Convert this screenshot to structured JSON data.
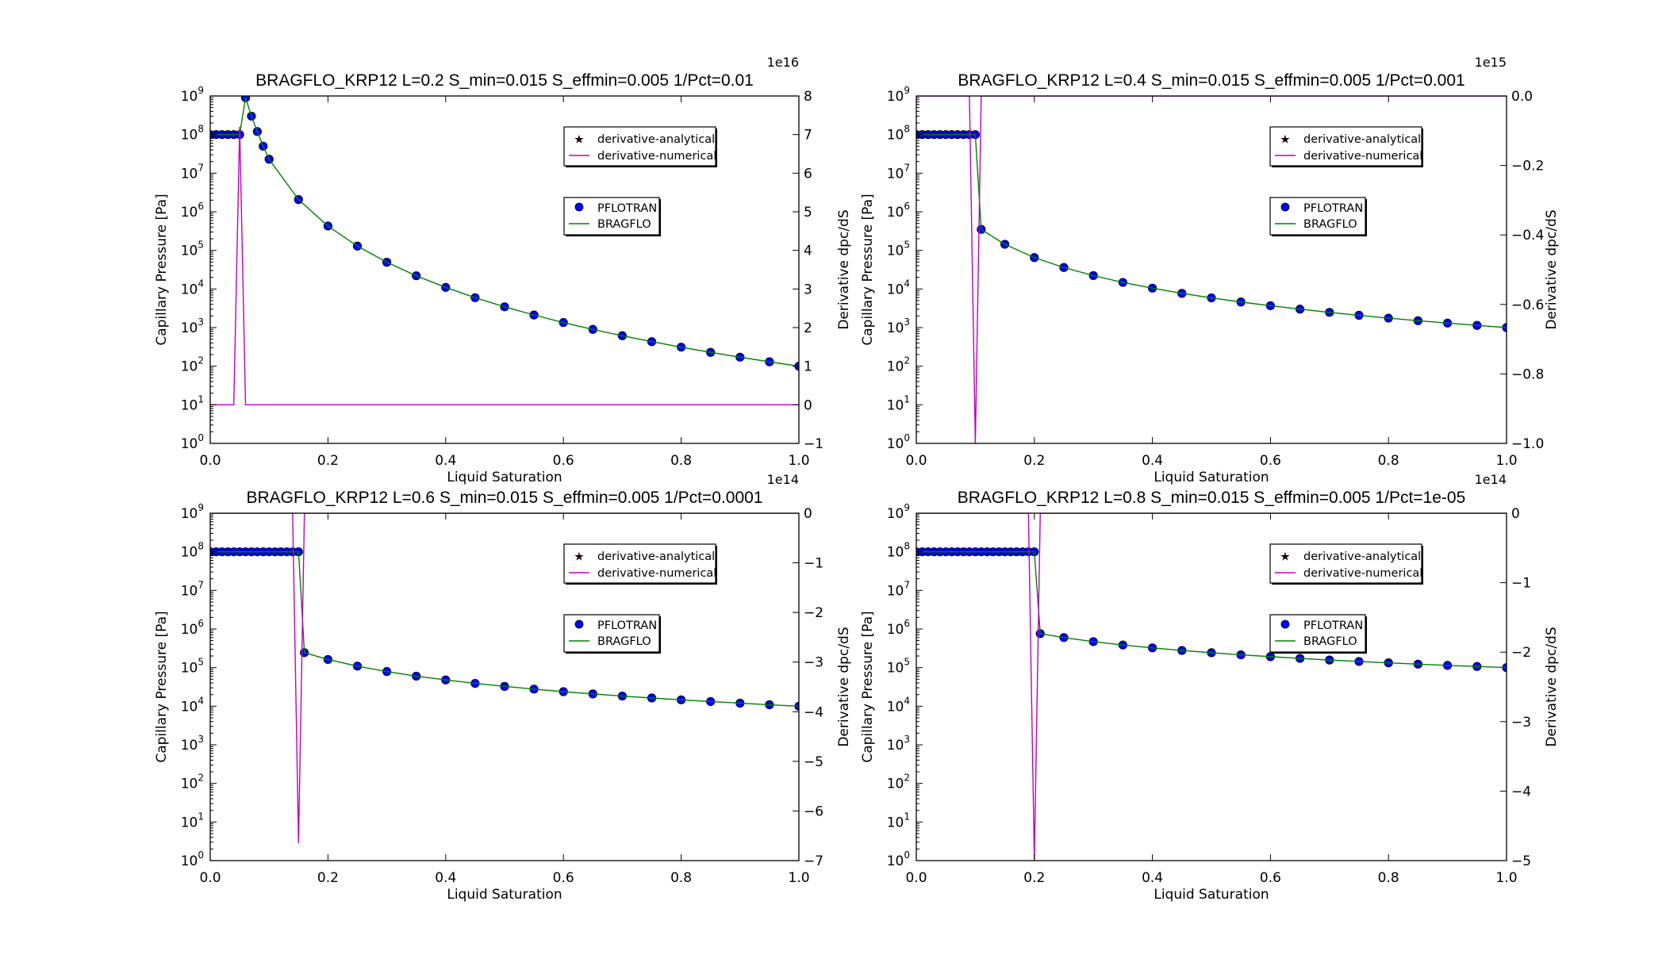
{
  "chart_data": [
    {
      "type": "line",
      "title": "BRAGFLO_KRP12 L=0.2 S_min=0.015 S_effmin=0.005 1/Pct=0.01",
      "xlabel": "Liquid Saturation",
      "ylabel": "Capillary Pressure [Pa]",
      "ylabel_right": "Derivative dpc/dS",
      "right_offset_text": "1e16",
      "xlim": [
        0,
        1
      ],
      "xticks": [
        "0.0",
        "0.2",
        "0.4",
        "0.6",
        "0.8",
        "1.0"
      ],
      "yscale": "log",
      "ylim": [
        1,
        1000000000.0
      ],
      "ytick_exponents": [
        0,
        1,
        2,
        3,
        4,
        5,
        6,
        7,
        8,
        9
      ],
      "y2lim": [
        -1,
        8
      ],
      "y2ticks": [
        -1,
        0,
        1,
        2,
        3,
        4,
        5,
        6,
        7,
        8
      ],
      "y2tick_labels": [
        "−1",
        "0",
        "1",
        "2",
        "3",
        "4",
        "5",
        "6",
        "7",
        "8"
      ],
      "grid": false,
      "legends": [
        [
          "derivative-analytical",
          "derivative-numerical"
        ],
        [
          "PFLOTRAN",
          "BRAGFLO"
        ]
      ],
      "x": [
        0,
        0.01,
        0.02,
        0.03,
        0.04,
        0.05,
        0.06,
        0.07,
        0.08,
        0.09,
        0.1,
        0.15,
        0.2,
        0.25,
        0.3,
        0.35,
        0.4,
        0.45,
        0.5,
        0.55,
        0.6,
        0.65,
        0.7,
        0.75,
        0.8,
        0.85,
        0.9,
        0.95,
        1.0
      ],
      "capillary_pressure": [
        100000000.0,
        100000000.0,
        100000000.0,
        100000000.0,
        100000000.0,
        100000000.0,
        900000000.0,
        300000000.0,
        120000000.0,
        50000000.0,
        23000000.0,
        2070000.0,
        428000.0,
        129000.0,
        49300.0,
        22000.0,
        11000.0,
        5950.0,
        3450.0,
        2120.0,
        1350.0,
        898,
        615,
        432,
        311,
        228,
        171,
        130,
        100
      ],
      "derivative_numerical": {
        "x": [
          0,
          0.04,
          0.05,
          0.06,
          1.0
        ],
        "y": [
          0,
          0,
          7.2,
          0,
          0
        ]
      }
    },
    {
      "type": "line",
      "title": "BRAGFLO_KRP12 L=0.4 S_min=0.015 S_effmin=0.005 1/Pct=0.001",
      "xlabel": "Liquid Saturation",
      "ylabel": "Capillary Pressure [Pa]",
      "ylabel_right": "Derivative dpc/dS",
      "right_offset_text": "1e15",
      "xlim": [
        0,
        1
      ],
      "xticks": [
        "0.0",
        "0.2",
        "0.4",
        "0.6",
        "0.8",
        "1.0"
      ],
      "yscale": "log",
      "ylim": [
        1,
        1000000000.0
      ],
      "ytick_exponents": [
        0,
        1,
        2,
        3,
        4,
        5,
        6,
        7,
        8,
        9
      ],
      "y2lim": [
        -1,
        0
      ],
      "y2ticks": [
        -1,
        -0.8,
        -0.6,
        -0.4,
        -0.2,
        0
      ],
      "y2tick_labels": [
        "−1.0",
        "−0.8",
        "−0.6",
        "−0.4",
        "−0.2",
        "0.0"
      ],
      "grid": false,
      "legends": [
        [
          "derivative-analytical",
          "derivative-numerical"
        ],
        [
          "PFLOTRAN",
          "BRAGFLO"
        ]
      ],
      "x": [
        0,
        0.01,
        0.02,
        0.03,
        0.04,
        0.05,
        0.06,
        0.07,
        0.08,
        0.09,
        0.1,
        0.11,
        0.15,
        0.2,
        0.25,
        0.3,
        0.35,
        0.4,
        0.45,
        0.5,
        0.55,
        0.6,
        0.65,
        0.7,
        0.75,
        0.8,
        0.85,
        0.9,
        0.95,
        1.0
      ],
      "capillary_pressure": [
        100000000.0,
        100000000.0,
        100000000.0,
        100000000.0,
        100000000.0,
        100000000.0,
        100000000.0,
        100000000.0,
        100000000.0,
        100000000.0,
        100000000.0,
        350000.0,
        144000.0,
        65000.0,
        36000.0,
        22200.0,
        14800.0,
        10500.0,
        7700.0,
        5880.0,
        4600.0,
        3680.0,
        3000.0,
        2480.0,
        2080.0,
        1760.0,
        1510.0,
        1310.0,
        1140.0,
        1000.0
      ],
      "derivative_numerical": {
        "x": [
          0,
          0.09,
          0.1,
          0.11,
          1.0
        ],
        "y": [
          0,
          0,
          -1.0,
          0,
          0
        ]
      }
    },
    {
      "type": "line",
      "title": "BRAGFLO_KRP12 L=0.6 S_min=0.015 S_effmin=0.005 1/Pct=0.0001",
      "xlabel": "Liquid Saturation",
      "ylabel": "Capillary Pressure [Pa]",
      "ylabel_right": "Derivative dpc/dS",
      "right_offset_text": "1e14",
      "xlim": [
        0,
        1
      ],
      "xticks": [
        "0.0",
        "0.2",
        "0.4",
        "0.6",
        "0.8",
        "1.0"
      ],
      "yscale": "log",
      "ylim": [
        1,
        1000000000.0
      ],
      "ytick_exponents": [
        0,
        1,
        2,
        3,
        4,
        5,
        6,
        7,
        8,
        9
      ],
      "y2lim": [
        -7,
        0
      ],
      "y2ticks": [
        -7,
        -6,
        -5,
        -4,
        -3,
        -2,
        -1,
        0
      ],
      "y2tick_labels": [
        "−7",
        "−6",
        "−5",
        "−4",
        "−3",
        "−2",
        "−1",
        "0"
      ],
      "grid": false,
      "legends": [
        [
          "derivative-analytical",
          "derivative-numerical"
        ],
        [
          "PFLOTRAN",
          "BRAGFLO"
        ]
      ],
      "x": [
        0,
        0.01,
        0.02,
        0.03,
        0.04,
        0.05,
        0.06,
        0.07,
        0.08,
        0.09,
        0.1,
        0.11,
        0.12,
        0.13,
        0.14,
        0.15,
        0.16,
        0.2,
        0.25,
        0.3,
        0.35,
        0.4,
        0.45,
        0.5,
        0.55,
        0.6,
        0.65,
        0.7,
        0.75,
        0.8,
        0.85,
        0.9,
        0.95,
        1.0
      ],
      "capillary_pressure": [
        100000000.0,
        100000000.0,
        100000000.0,
        100000000.0,
        100000000.0,
        100000000.0,
        100000000.0,
        100000000.0,
        100000000.0,
        100000000.0,
        100000000.0,
        100000000.0,
        100000000.0,
        100000000.0,
        100000000.0,
        100000000.0,
        244000.0,
        162000.0,
        109000.0,
        79000.0,
        60000.0,
        47900.0,
        39000.0,
        32600.0,
        27700.0,
        23800.0,
        20800.0,
        18300.0,
        16300.0,
        14600.0,
        13200.0,
        12000.0,
        10900.0,
        10000.0
      ],
      "derivative_numerical": {
        "x": [
          0,
          0.14,
          0.15,
          0.16,
          1.0
        ],
        "y": [
          0,
          0,
          -6.65,
          0,
          0
        ]
      }
    },
    {
      "type": "line",
      "title": "BRAGFLO_KRP12 L=0.8 S_min=0.015 S_effmin=0.005 1/Pct=1e-05",
      "xlabel": "Liquid Saturation",
      "ylabel": "Capillary Pressure [Pa]",
      "ylabel_right": "Derivative dpc/dS",
      "right_offset_text": "1e14",
      "xlim": [
        0,
        1
      ],
      "xticks": [
        "0.0",
        "0.2",
        "0.4",
        "0.6",
        "0.8",
        "1.0"
      ],
      "yscale": "log",
      "ylim": [
        1,
        1000000000.0
      ],
      "ytick_exponents": [
        0,
        1,
        2,
        3,
        4,
        5,
        6,
        7,
        8,
        9
      ],
      "y2lim": [
        -5,
        0
      ],
      "y2ticks": [
        -5,
        -4,
        -3,
        -2,
        -1,
        0
      ],
      "y2tick_labels": [
        "−5",
        "−4",
        "−3",
        "−2",
        "−1",
        "0"
      ],
      "grid": false,
      "legends": [
        [
          "derivative-analytical",
          "derivative-numerical"
        ],
        [
          "PFLOTRAN",
          "BRAGFLO"
        ]
      ],
      "x": [
        0,
        0.01,
        0.02,
        0.03,
        0.04,
        0.05,
        0.06,
        0.07,
        0.08,
        0.09,
        0.1,
        0.11,
        0.12,
        0.13,
        0.14,
        0.15,
        0.16,
        0.17,
        0.18,
        0.19,
        0.2,
        0.21,
        0.25,
        0.3,
        0.35,
        0.4,
        0.45,
        0.5,
        0.55,
        0.6,
        0.65,
        0.7,
        0.75,
        0.8,
        0.85,
        0.9,
        0.95,
        1.0
      ],
      "capillary_pressure": [
        100000000.0,
        100000000.0,
        100000000.0,
        100000000.0,
        100000000.0,
        100000000.0,
        100000000.0,
        100000000.0,
        100000000.0,
        100000000.0,
        100000000.0,
        100000000.0,
        100000000.0,
        100000000.0,
        100000000.0,
        100000000.0,
        100000000.0,
        100000000.0,
        100000000.0,
        100000000.0,
        100000000.0,
        760000.0,
        600000.0,
        471000.0,
        385000.0,
        324000.0,
        278000.0,
        243000.0,
        214000.0,
        192000.0,
        173000.0,
        157000.0,
        144000.0,
        133000.0,
        123000.0,
        114000.0,
        107000.0,
        100000.0
      ],
      "derivative_numerical": {
        "x": [
          0,
          0.19,
          0.2,
          0.21,
          1.0
        ],
        "y": [
          0,
          0,
          -5.0,
          0,
          0
        ]
      }
    }
  ],
  "colors": {
    "pflotran": "#0000ff",
    "bragflo": "#008000",
    "derivative_numerical": "#bf00bf",
    "derivative_analytical": "#cc0000"
  }
}
